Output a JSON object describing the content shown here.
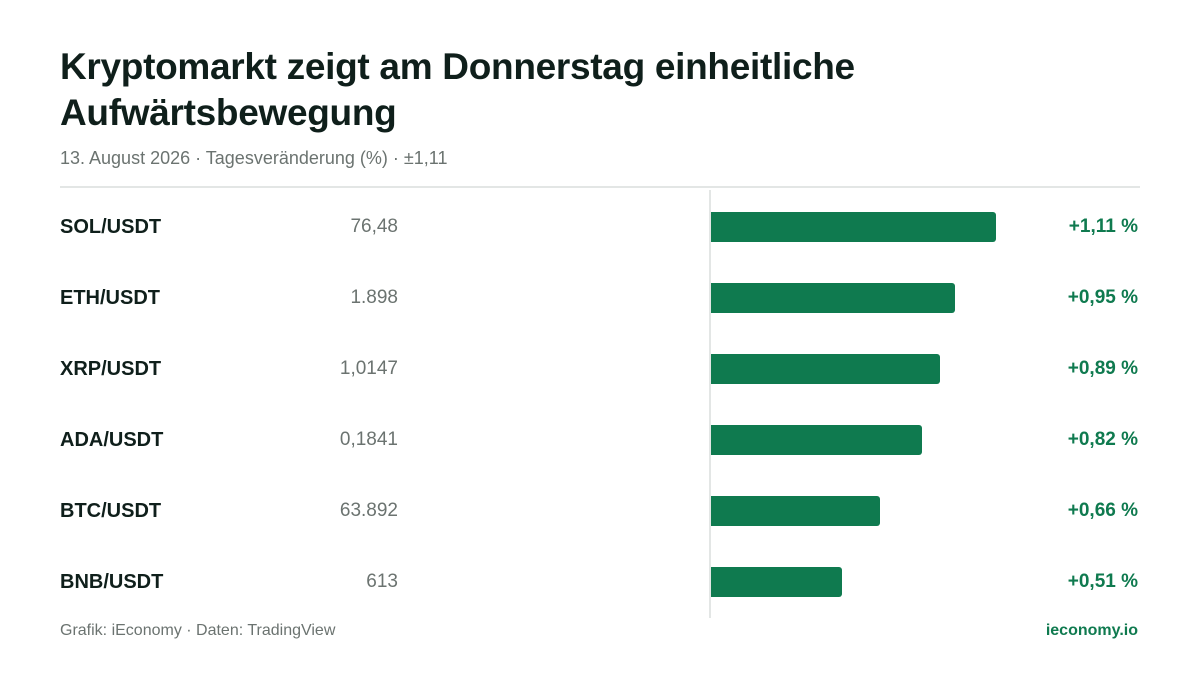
{
  "title": "Kryptomarkt zeigt am Donnerstag einheitliche Aufwärtsbewegung",
  "subtitle": "13. August 2026 · Tagesveränderung (%) · ±1,11",
  "footer": {
    "source": "Grafik: iEconomy · Daten: TradingView",
    "brand": "ieconomy.io"
  },
  "colors": {
    "positive": "#0f7a4f",
    "text": "#0f1f1b",
    "muted": "#6b7370",
    "grid": "#e3e6e5"
  },
  "chart_data": {
    "type": "bar",
    "orientation": "horizontal",
    "xlim": [
      0,
      1.11
    ],
    "grid": false,
    "categories": [
      "SOL/USDT",
      "ETH/USDT",
      "XRP/USDT",
      "ADA/USDT",
      "BTC/USDT",
      "BNB/USDT"
    ],
    "prices": [
      "76,48",
      "1.898",
      "1,0147",
      "0,1841",
      "63.892",
      "613"
    ],
    "values": [
      1.11,
      0.95,
      0.89,
      0.82,
      0.66,
      0.51
    ],
    "value_labels": [
      "+1,11 %",
      "+0,95 %",
      "+0,89 %",
      "+0,82 %",
      "+0,66 %",
      "+0,51 %"
    ]
  }
}
